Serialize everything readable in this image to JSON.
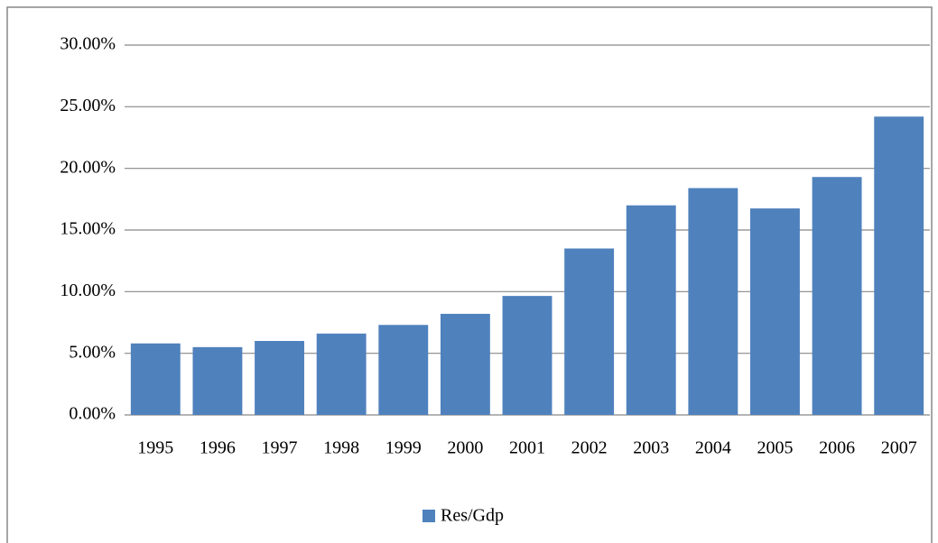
{
  "chart_data": {
    "type": "bar",
    "categories": [
      "1995",
      "1996",
      "1997",
      "1998",
      "1999",
      "2000",
      "2001",
      "2002",
      "2003",
      "2004",
      "2005",
      "2006",
      "2007"
    ],
    "series": [
      {
        "name": "Res/Gdp",
        "color": "#4f81bd",
        "values": [
          5.8,
          5.5,
          6.0,
          6.6,
          7.3,
          8.2,
          9.65,
          13.5,
          17.0,
          18.4,
          16.75,
          19.3,
          24.2
        ]
      }
    ],
    "ylim": [
      0,
      30
    ],
    "yticks": [
      {
        "value": 0,
        "label": "0.00%"
      },
      {
        "value": 5,
        "label": "5.00%"
      },
      {
        "value": 10,
        "label": "10.00%"
      },
      {
        "value": 15,
        "label": "15.00%"
      },
      {
        "value": 20,
        "label": "20.00%"
      },
      {
        "value": 25,
        "label": "25.00%"
      },
      {
        "value": 30,
        "label": "30.00%"
      }
    ],
    "grid": true,
    "legend": "bottom"
  }
}
